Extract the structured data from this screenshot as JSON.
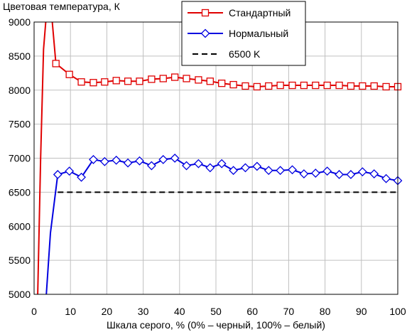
{
  "chart_data": {
    "type": "line",
    "title": "",
    "ylabel": "Цветовая температура, К",
    "xlabel": "Шкала серого, % (0% – черный, 100% – белый)",
    "xlim": [
      0,
      100
    ],
    "ylim": [
      5000,
      9000
    ],
    "xticks": [
      "0",
      "10",
      "20",
      "30",
      "40",
      "50",
      "60",
      "70",
      "80",
      "90",
      "100"
    ],
    "yticks": [
      "5000",
      "5500",
      "6000",
      "6500",
      "7000",
      "7500",
      "8000",
      "8500",
      "9000"
    ],
    "grid": true,
    "legend_position": "top-right",
    "series": [
      {
        "name": "Стандартный",
        "color": "#e00000",
        "marker": "square",
        "x": [
          1.0,
          1.8,
          2.6,
          3.2,
          3.6,
          4.2,
          5.0,
          6.0,
          9.7,
          13.0,
          16.3,
          19.4,
          22.6,
          25.8,
          29.0,
          32.3,
          35.5,
          38.7,
          41.9,
          45.2,
          48.4,
          51.6,
          54.8,
          58.1,
          61.3,
          64.5,
          67.7,
          71.0,
          74.2,
          77.4,
          80.6,
          83.9,
          87.1,
          90.3,
          93.5,
          96.8,
          100
        ],
        "y": [
          5000,
          7000,
          8600,
          9000,
          9200,
          9300,
          9000,
          8390,
          8230,
          8120,
          8110,
          8120,
          8140,
          8130,
          8130,
          8160,
          8170,
          8190,
          8170,
          8150,
          8130,
          8100,
          8080,
          8060,
          8050,
          8060,
          8070,
          8070,
          8070,
          8070,
          8070,
          8070,
          8060,
          8060,
          8060,
          8050,
          8050
        ],
        "marker_from_index": 7
      },
      {
        "name": "Нормальный",
        "color": "#0000e0",
        "marker": "diamond",
        "x": [
          3.3,
          4.5,
          6.5,
          9.7,
          13.0,
          16.3,
          19.4,
          22.6,
          25.8,
          29.0,
          32.3,
          35.5,
          38.7,
          41.9,
          45.2,
          48.4,
          51.6,
          54.8,
          58.1,
          61.3,
          64.5,
          67.7,
          71.0,
          74.2,
          77.4,
          80.6,
          83.9,
          87.1,
          90.3,
          93.5,
          96.8,
          100
        ],
        "y": [
          4950,
          5900,
          6760,
          6810,
          6720,
          6980,
          6950,
          6970,
          6930,
          6960,
          6890,
          6980,
          7000,
          6890,
          6920,
          6860,
          6920,
          6820,
          6860,
          6880,
          6820,
          6820,
          6830,
          6770,
          6780,
          6810,
          6760,
          6760,
          6800,
          6770,
          6700,
          6670
        ],
        "marker_from_index": 2
      },
      {
        "name": "6500 K",
        "color": "#000000",
        "dashed": true,
        "x": [
          6.5,
          100
        ],
        "y": [
          6500,
          6500
        ]
      }
    ]
  }
}
